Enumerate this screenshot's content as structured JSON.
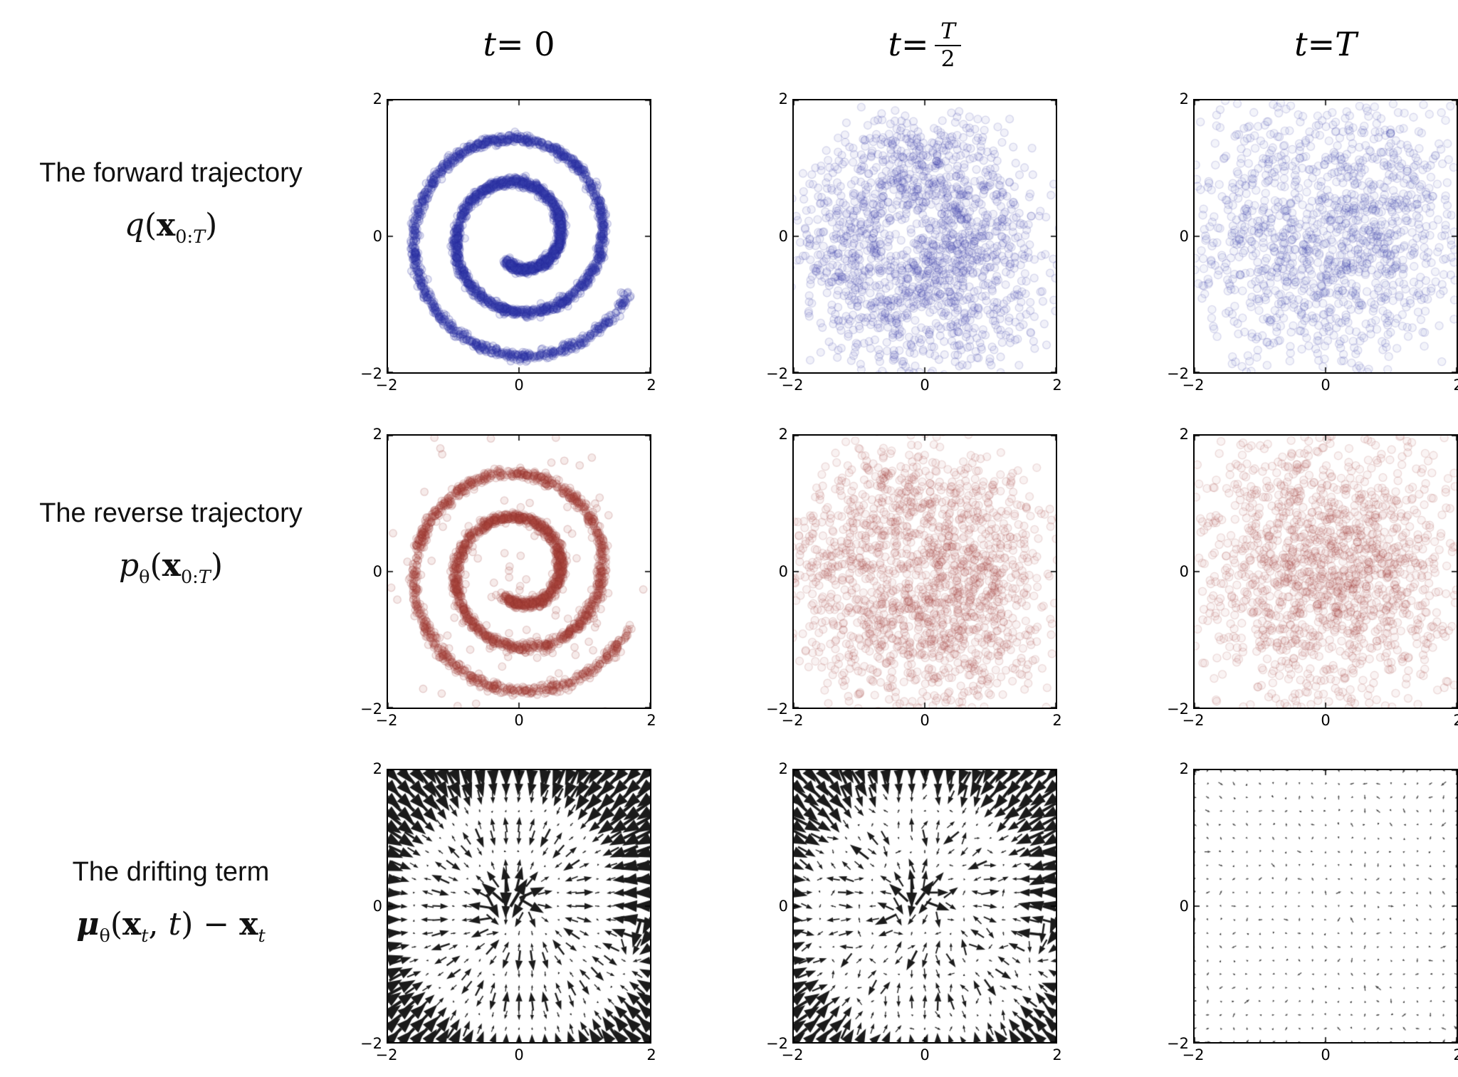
{
  "figure": {
    "column_headers": [
      {
        "html": "<i>t</i> = 0"
      },
      {
        "html": "<i>t</i> = <span class='frac'><span class='num'><i>T</i></span><span class='den'>2</span></span>"
      },
      {
        "html": "<i>t</i> = <i>T</i>"
      }
    ],
    "row_labels": [
      {
        "title": "The forward trajectory",
        "math": "<i>q</i>(<b>x</b><sub>0:<i>T</i></sub>)"
      },
      {
        "title": "The reverse trajectory",
        "math": "<i>p</i><sub>θ</sub>(<b>x</b><sub>0:<i>T</i></sub>)"
      },
      {
        "title": "The drifting term",
        "math": "<b><i>μ</i></b><sub>θ</sub>(<b>x</b><sub><i>t</i></sub>, <i>t</i>) − <b>x</b><sub><i>t</i></sub>"
      }
    ],
    "tick_labels": {
      "x": [
        "−2",
        "0",
        "2"
      ],
      "y": [
        "2",
        "0",
        "−2"
      ]
    }
  },
  "chart_data": {
    "type": "scatter",
    "description": "3x3 grid: diffusion model on 2-D swiss-roll data. Row 1: forward trajectory q(x_0:T) (blue scatter) at t=0 (clean spiral), t=T/2 (noised spiral), t=T (Gaussian noise). Row 2: reverse trajectory p_theta(x_0:T) (red scatter). Row 3: drifting term mu_theta(x_t,t)-x_t shown as black quiver fields pointing toward the data spiral.",
    "xlim": [
      -2,
      2
    ],
    "ylim": [
      -2,
      2
    ],
    "xticks": [
      -2,
      0,
      2
    ],
    "yticks": [
      -2,
      0,
      2
    ],
    "grid": false,
    "spiral": {
      "theta0": -2.1,
      "sweep": 14.2,
      "r0": 0.42,
      "r1": 1.45
    },
    "plots": [
      {
        "id": "r0c0",
        "row": "forward",
        "t": "0",
        "type": "scatter",
        "dist": "spiral",
        "n": 3000,
        "sigma": 0.032,
        "outlier_frac": 0,
        "outlier_sigma": 0,
        "color": "#3a3eaa",
        "edge": "#23279b",
        "fill_alpha": 0.12,
        "edge_alpha": 0.25,
        "marker_px": 5.2,
        "seed": 11
      },
      {
        "id": "r0c1",
        "row": "forward",
        "t": "T/2",
        "type": "scatter",
        "dist": "spiral",
        "n": 1650,
        "sigma": 0.3,
        "outlier_frac": 0,
        "outlier_sigma": 0,
        "color": "#3a3eaa",
        "edge": "#23279b",
        "fill_alpha": 0.07,
        "edge_alpha": 0.17,
        "marker_px": 5.4,
        "seed": 12
      },
      {
        "id": "r0c2",
        "row": "forward",
        "t": "T",
        "type": "scatter",
        "dist": "gaussian",
        "n": 1300,
        "sigma": 1.15,
        "outlier_frac": 0,
        "outlier_sigma": 0,
        "color": "#3a3eaa",
        "edge": "#23279b",
        "fill_alpha": 0.06,
        "edge_alpha": 0.16,
        "marker_px": 5.5,
        "seed": 13
      },
      {
        "id": "r1c0",
        "row": "reverse",
        "t": "0",
        "type": "scatter",
        "dist": "spiral",
        "n": 2700,
        "sigma": 0.035,
        "outlier_frac": 0.04,
        "outlier_sigma": 0.5,
        "color": "#b04a42",
        "edge": "#93322c",
        "fill_alpha": 0.11,
        "edge_alpha": 0.22,
        "marker_px": 5.2,
        "seed": 21
      },
      {
        "id": "r1c1",
        "row": "reverse",
        "t": "T/2",
        "type": "scatter",
        "dist": "spiral",
        "n": 1750,
        "sigma": 0.42,
        "outlier_frac": 0,
        "outlier_sigma": 0,
        "color": "#b04a42",
        "edge": "#93322c",
        "fill_alpha": 0.07,
        "edge_alpha": 0.16,
        "marker_px": 5.4,
        "seed": 22
      },
      {
        "id": "r1c2",
        "row": "reverse",
        "t": "T",
        "type": "scatter",
        "dist": "gaussian",
        "n": 1500,
        "sigma": 1.05,
        "outlier_frac": 0,
        "outlier_sigma": 0,
        "color": "#b04a42",
        "edge": "#93322c",
        "fill_alpha": 0.06,
        "edge_alpha": 0.16,
        "marker_px": 5.5,
        "seed": 23
      },
      {
        "id": "r2c0",
        "row": "drift",
        "t": "0",
        "type": "quiver",
        "grid": 21,
        "scale": 1.0,
        "cap": 0.5,
        "noise": 0.0,
        "color": "#1b1b1b",
        "alpha": 1.0,
        "seed": 31
      },
      {
        "id": "r2c1",
        "row": "drift",
        "t": "T/2",
        "type": "quiver",
        "grid": 21,
        "scale": 0.82,
        "cap": 0.46,
        "noise": 0.05,
        "color": "#1b1b1b",
        "alpha": 1.0,
        "seed": 32
      },
      {
        "id": "r2c2",
        "row": "drift",
        "t": "T",
        "type": "quiver",
        "grid": 21,
        "scale": 0.05,
        "cap": 0.12,
        "noise": 0.032,
        "color": "#262626",
        "alpha": 0.88,
        "seed": 33
      }
    ]
  }
}
